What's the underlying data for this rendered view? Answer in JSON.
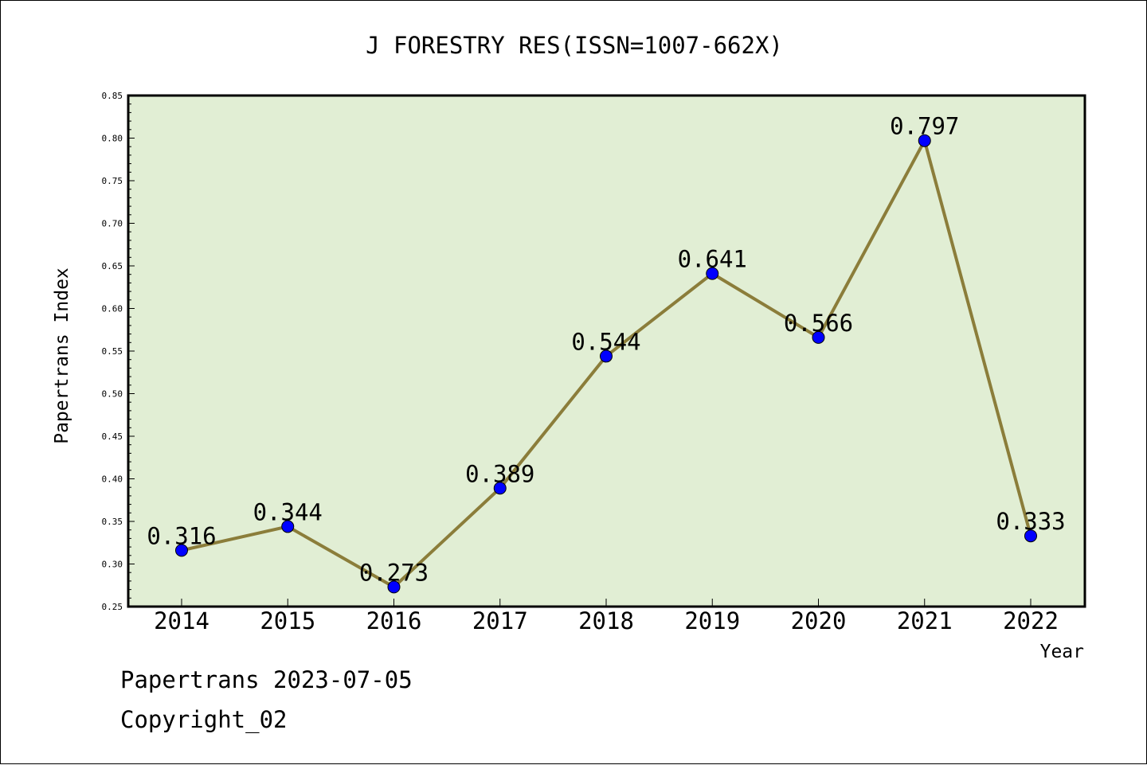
{
  "colors": {
    "plot_background": "#e1eed4",
    "line": "#8b7d3a",
    "marker": "#0000ff",
    "axis": "#000000"
  },
  "chart_data": {
    "type": "line",
    "title": "J FORESTRY RES(ISSN=1007-662X)",
    "xlabel": "Year",
    "ylabel": "Papertrans Index",
    "categories": [
      "2014",
      "2015",
      "2016",
      "2017",
      "2018",
      "2019",
      "2020",
      "2021",
      "2022"
    ],
    "series": [
      {
        "values": [
          0.316,
          0.344,
          0.273,
          0.389,
          0.544,
          0.641,
          0.566,
          0.797,
          0.333
        ],
        "labels": [
          "0.316",
          "0.344",
          "0.273",
          "0.389",
          "0.544",
          "0.641",
          "0.566",
          "0.797",
          "0.333"
        ]
      }
    ],
    "ylim": [
      0.25,
      0.85
    ],
    "yticks": [
      "0.25",
      "0.30",
      "0.35",
      "0.40",
      "0.45",
      "0.50",
      "0.55",
      "0.60",
      "0.65",
      "0.70",
      "0.75",
      "0.80",
      "0.85"
    ],
    "grid": false,
    "legend": "none"
  },
  "footer": {
    "line1": "Papertrans 2023-07-05",
    "line2": "Copyright_02"
  }
}
